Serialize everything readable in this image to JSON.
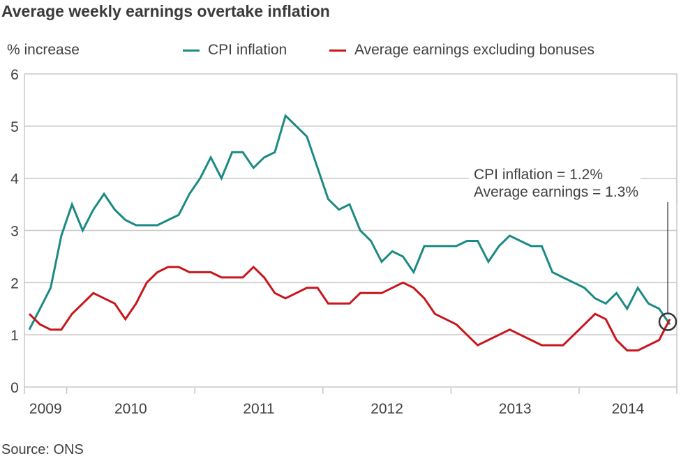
{
  "header": {
    "title": "Average weekly earnings overtake inflation",
    "source": "Source: ONS"
  },
  "colors": {
    "cpi": "#1b8a83",
    "earnings": "#c8161d",
    "grid": "#c8c8c8",
    "text": "#404040",
    "annotation": "#333333"
  },
  "chart_data": {
    "type": "line",
    "title": "Average weekly earnings overtake inflation",
    "xlabel": "",
    "ylabel": "% increase",
    "ylim": [
      0,
      6
    ],
    "yticks": [
      "0",
      "1",
      "2",
      "3",
      "4",
      "5",
      "6"
    ],
    "grid": true,
    "legend_position": "top",
    "x_start": "Sep 2009",
    "x_end": "Sep 2014",
    "x_frequency": "monthly",
    "year_labels": [
      "2009",
      "2010",
      "2011",
      "2012",
      "2013",
      "2014"
    ],
    "series": [
      {
        "name": "CPI inflation",
        "color": "#1b8a83",
        "values": [
          1.1,
          1.5,
          1.9,
          2.9,
          3.5,
          3.0,
          3.4,
          3.7,
          3.4,
          3.2,
          3.1,
          3.1,
          3.1,
          3.2,
          3.3,
          3.7,
          4.0,
          4.4,
          4.0,
          4.5,
          4.5,
          4.2,
          4.4,
          4.5,
          5.2,
          5.0,
          4.8,
          4.2,
          3.6,
          3.4,
          3.5,
          3.0,
          2.8,
          2.4,
          2.6,
          2.5,
          2.2,
          2.7,
          2.7,
          2.7,
          2.7,
          2.8,
          2.8,
          2.4,
          2.7,
          2.9,
          2.8,
          2.7,
          2.7,
          2.2,
          2.1,
          2.0,
          1.9,
          1.7,
          1.6,
          1.8,
          1.5,
          1.9,
          1.6,
          1.5,
          1.2
        ]
      },
      {
        "name": "Average earnings excluding bonuses",
        "color": "#c8161d",
        "values": [
          1.4,
          1.2,
          1.1,
          1.1,
          1.4,
          1.6,
          1.8,
          1.7,
          1.6,
          1.3,
          1.6,
          2.0,
          2.2,
          2.3,
          2.3,
          2.2,
          2.2,
          2.2,
          2.1,
          2.1,
          2.1,
          2.3,
          2.1,
          1.8,
          1.7,
          1.8,
          1.9,
          1.9,
          1.6,
          1.6,
          1.6,
          1.8,
          1.8,
          1.8,
          1.9,
          2.0,
          1.9,
          1.7,
          1.4,
          1.3,
          1.2,
          1.0,
          0.8,
          0.9,
          1.0,
          1.1,
          1.0,
          0.9,
          0.8,
          0.8,
          0.8,
          1.0,
          1.2,
          1.4,
          1.3,
          0.9,
          0.7,
          0.7,
          0.8,
          0.9,
          1.3
        ]
      }
    ],
    "annotations": [
      {
        "line1": "CPI inflation = 1.2%",
        "line2": "Average earnings = 1.3%",
        "target": "last point"
      }
    ]
  }
}
